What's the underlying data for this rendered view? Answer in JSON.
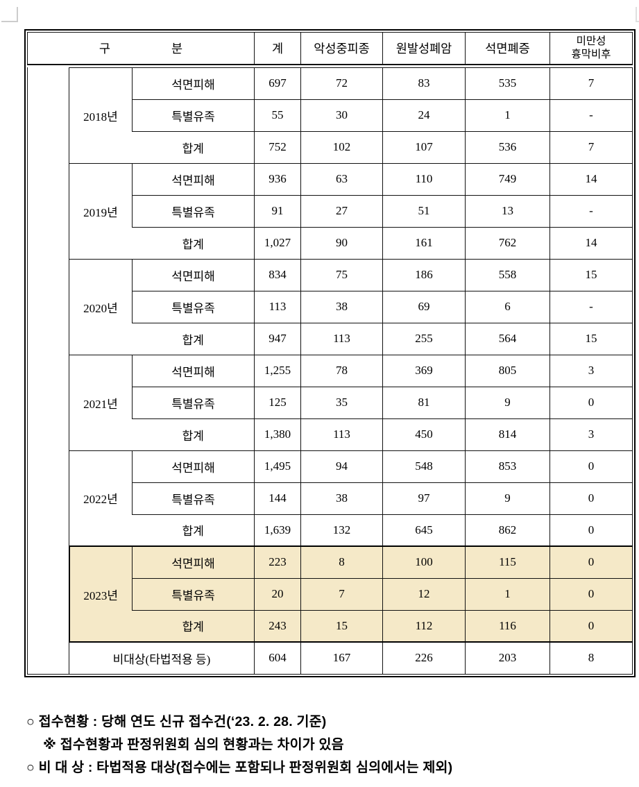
{
  "table": {
    "highlight_color": "#f5e9c8",
    "header": {
      "gubun_left": "구",
      "gubun_right": "분",
      "col_total": "계",
      "col_mesothelioma": "악성중피종",
      "col_lung_cancer": "원발성폐암",
      "col_asbestosis": "석면폐증",
      "col_pleural_line1": "미만성",
      "col_pleural_line2": "흉막비후"
    },
    "row_labels": {
      "damage": "석면피해",
      "bereaved": "특별유족",
      "sum": "합계"
    },
    "groups": [
      {
        "year": "2018년",
        "damage": [
          "697",
          "72",
          "83",
          "535",
          "7"
        ],
        "bereaved": [
          "55",
          "30",
          "24",
          "1",
          "-"
        ],
        "sum": [
          "752",
          "102",
          "107",
          "536",
          "7"
        ]
      },
      {
        "year": "2019년",
        "damage": [
          "936",
          "63",
          "110",
          "749",
          "14"
        ],
        "bereaved": [
          "91",
          "27",
          "51",
          "13",
          "-"
        ],
        "sum": [
          "1,027",
          "90",
          "161",
          "762",
          "14"
        ]
      },
      {
        "year": "2020년",
        "damage": [
          "834",
          "75",
          "186",
          "558",
          "15"
        ],
        "bereaved": [
          "113",
          "38",
          "69",
          "6",
          "-"
        ],
        "sum": [
          "947",
          "113",
          "255",
          "564",
          "15"
        ]
      },
      {
        "year": "2021년",
        "damage": [
          "1,255",
          "78",
          "369",
          "805",
          "3"
        ],
        "bereaved": [
          "125",
          "35",
          "81",
          "9",
          "0"
        ],
        "sum": [
          "1,380",
          "113",
          "450",
          "814",
          "3"
        ]
      },
      {
        "year": "2022년",
        "damage": [
          "1,495",
          "94",
          "548",
          "853",
          "0"
        ],
        "bereaved": [
          "144",
          "38",
          "97",
          "9",
          "0"
        ],
        "sum": [
          "1,639",
          "132",
          "645",
          "862",
          "0"
        ]
      },
      {
        "year": "2023년",
        "highlighted": true,
        "damage": [
          "223",
          "8",
          "100",
          "115",
          "0"
        ],
        "bereaved": [
          "20",
          "7",
          "12",
          "1",
          "0"
        ],
        "sum": [
          "243",
          "15",
          "112",
          "116",
          "0"
        ]
      }
    ],
    "non_target_row": {
      "label": "비대상(타법적용 등)",
      "values": [
        "604",
        "167",
        "226",
        "203",
        "8"
      ]
    }
  },
  "footnotes": [
    "○ 접수현황 : 당해 연도 신규 접수건(‘23. 2. 28. 기준)",
    "※ 접수현황과 판정위원회 심의 현황과는 차이가 있음",
    "○ 비 대 상 : 타법적용 대상(접수에는 포함되나 판정위원회 심의에서는 제외)"
  ]
}
